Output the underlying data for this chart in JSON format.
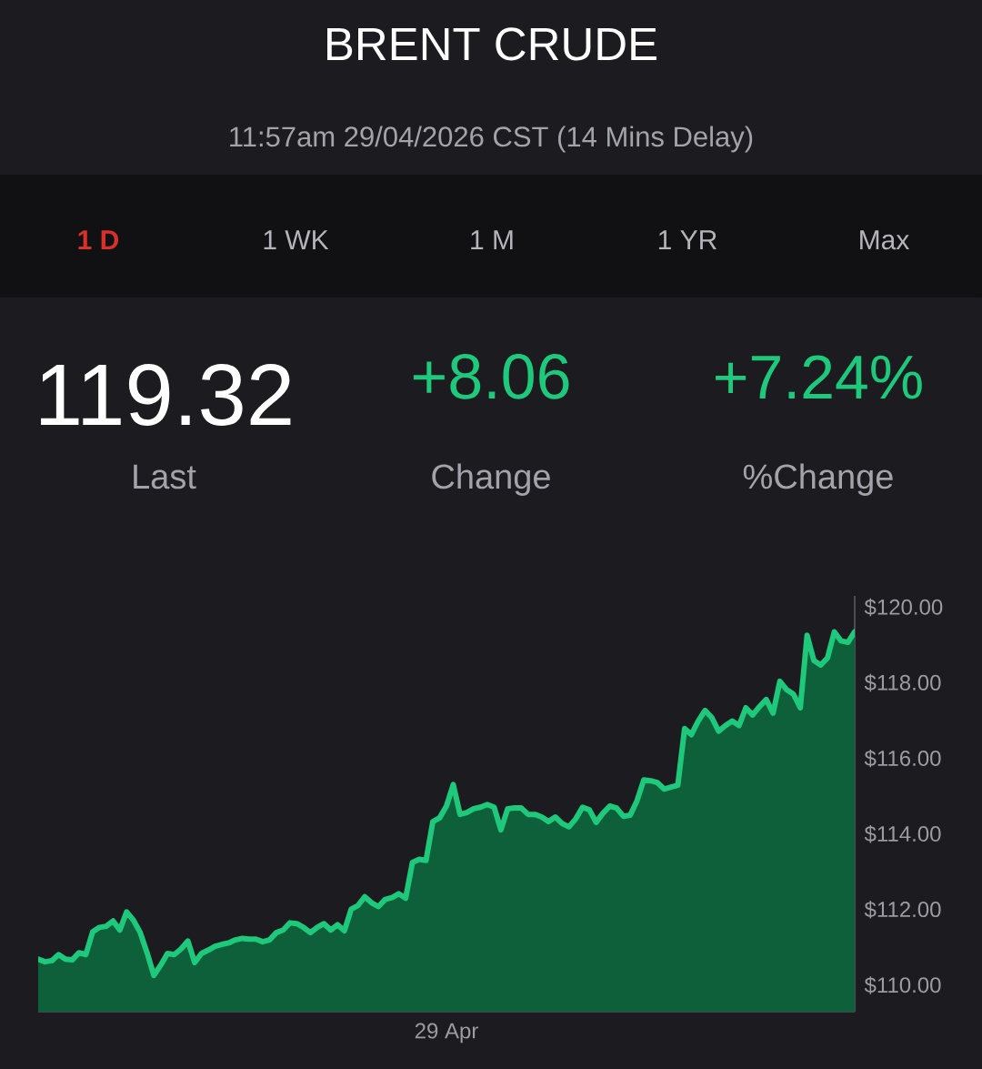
{
  "chart_data": {
    "type": "area",
    "title": "BRENT CRUDE",
    "subtitle": "11:57am 29/04/2026 CST (14 Mins Delay)",
    "annotations": [
      "1 D",
      "1 WK",
      "1 M",
      "1 YR",
      "Max",
      "119.32",
      "Last",
      "+8.06",
      "Change",
      "+7.24%",
      "%Change"
    ],
    "categories": [
      null,
      null,
      null,
      null,
      null,
      null,
      null,
      null,
      null,
      null,
      null,
      null,
      null,
      null,
      null,
      null,
      null,
      null,
      null,
      null,
      null,
      null,
      null,
      null,
      null,
      null,
      null,
      null,
      null,
      null,
      null,
      null,
      null,
      null,
      null,
      null,
      null,
      null,
      null,
      null,
      null,
      null,
      null,
      null,
      null,
      null,
      null,
      null,
      null,
      null,
      null,
      null,
      null,
      null,
      null,
      null,
      null,
      null,
      null,
      null,
      "29 Apr",
      null,
      null,
      null,
      null,
      null,
      null,
      null,
      null,
      null,
      null,
      null,
      null,
      null,
      null,
      null,
      null,
      null,
      null,
      null,
      null,
      null,
      null,
      null,
      null,
      null,
      null,
      null,
      null,
      null,
      null,
      null,
      null,
      null,
      null,
      null,
      null,
      null,
      null,
      null,
      null,
      null,
      null,
      null,
      null,
      null,
      null,
      null,
      null,
      null,
      null,
      null,
      null,
      null,
      null,
      null,
      null,
      null,
      null,
      null,
      null
    ],
    "color": "#1ec97b",
    "values": [
      110.69,
      110.62,
      110.65,
      110.81,
      110.69,
      110.67,
      110.86,
      110.81,
      111.41,
      111.53,
      111.56,
      111.7,
      111.46,
      111.94,
      111.72,
      111.39,
      110.86,
      110.26,
      110.53,
      110.84,
      110.81,
      110.96,
      111.17,
      110.6,
      110.84,
      110.93,
      111.03,
      111.08,
      111.12,
      111.2,
      111.24,
      111.22,
      111.22,
      111.15,
      111.2,
      111.39,
      111.46,
      111.65,
      111.63,
      111.53,
      111.39,
      111.53,
      111.63,
      111.46,
      111.6,
      111.44,
      112.01,
      112.11,
      112.34,
      112.18,
      112.08,
      112.27,
      112.32,
      112.42,
      112.3,
      113.25,
      113.33,
      113.3,
      114.33,
      114.43,
      114.74,
      115.31,
      114.52,
      114.57,
      114.67,
      114.71,
      114.78,
      114.71,
      114.11,
      114.67,
      114.69,
      114.69,
      114.52,
      114.52,
      114.45,
      114.33,
      114.45,
      114.28,
      114.19,
      114.4,
      114.71,
      114.64,
      114.31,
      114.55,
      114.74,
      114.69,
      114.47,
      114.5,
      114.88,
      115.43,
      115.41,
      115.36,
      115.19,
      115.24,
      115.29,
      116.79,
      116.63,
      116.99,
      117.27,
      117.08,
      116.72,
      116.87,
      116.99,
      116.87,
      117.34,
      117.15,
      117.37,
      117.56,
      117.2,
      118.04,
      117.82,
      117.7,
      117.34,
      119.26,
      118.59,
      118.47,
      118.66,
      119.35,
      119.11,
      119.07,
      119.35
    ],
    "ylim": [
      109.3,
      120.3
    ],
    "yticks": [
      {
        "value": 110,
        "label": "$110.00"
      },
      {
        "value": 112,
        "label": "$112.00"
      },
      {
        "value": 114,
        "label": "$114.00"
      },
      {
        "value": 116,
        "label": "$116.00"
      },
      {
        "value": 118,
        "label": "$118.00"
      },
      {
        "value": 120,
        "label": "$120.00"
      }
    ]
  }
}
